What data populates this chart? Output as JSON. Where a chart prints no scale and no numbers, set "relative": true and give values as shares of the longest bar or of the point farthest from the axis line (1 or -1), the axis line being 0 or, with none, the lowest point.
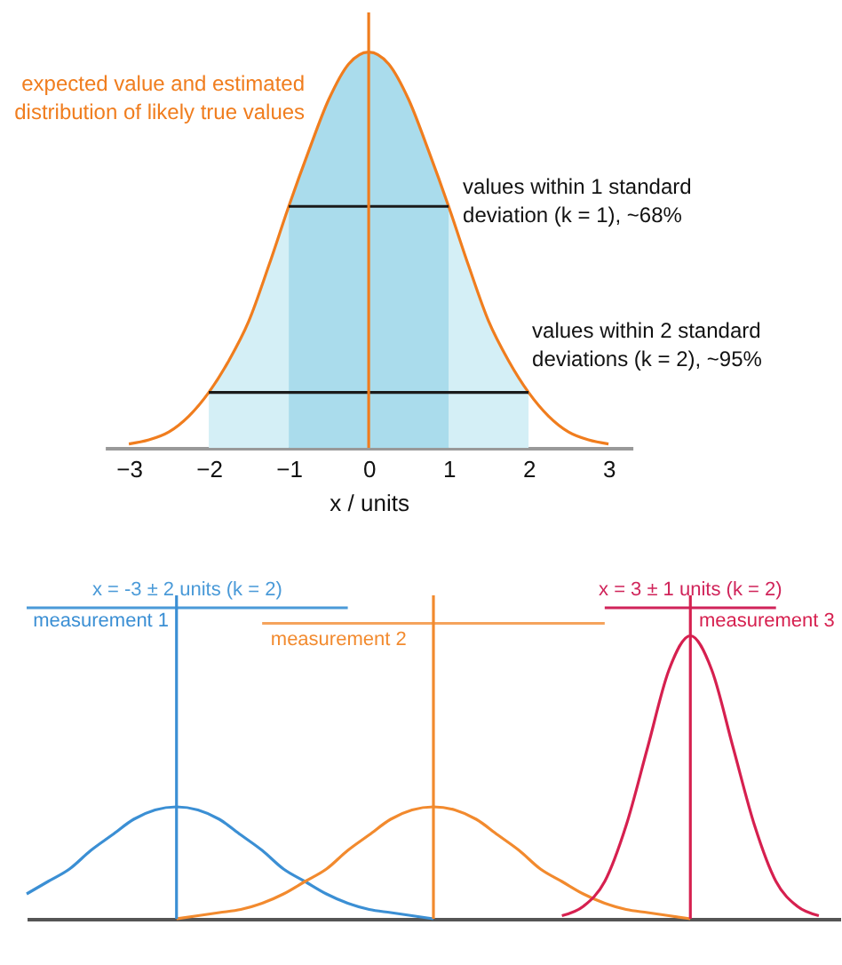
{
  "chart_data": [
    {
      "type": "line",
      "relative": true,
      "xlabel": "x / units",
      "xlim": [
        -3.3,
        3.3
      ],
      "xticks": [
        -3,
        -2,
        -1,
        0,
        1,
        2,
        3
      ],
      "ref_lines": [
        {
          "axis": "x",
          "value": 0,
          "color": "#f07d1e"
        }
      ],
      "annotations": [
        {
          "text": "values within 1 standard deviation (k = 1), ~68%",
          "x": 1,
          "y": 0.61
        },
        {
          "text": "values within 2 standard deviations (k = 2), ~95%",
          "x": 2,
          "y": 0.14
        }
      ],
      "series": [
        {
          "type": "area",
          "color": "#d4eff6",
          "x": [
            -2,
            -1.75,
            -1.5,
            -1.25,
            -1
          ],
          "values": [
            0.14,
            0.22,
            0.32,
            0.46,
            0.61
          ]
        },
        {
          "type": "area",
          "color": "#d4eff6",
          "x": [
            1,
            1.25,
            1.5,
            1.75,
            2
          ],
          "values": [
            0.61,
            0.46,
            0.32,
            0.22,
            0.14
          ]
        },
        {
          "type": "area",
          "color": "#aadcec",
          "x": [
            -1,
            -0.75,
            -0.5,
            -0.25,
            0,
            0.25,
            0.5,
            0.75,
            1
          ],
          "values": [
            0.61,
            0.75,
            0.88,
            0.97,
            1,
            0.97,
            0.88,
            0.75,
            0.61
          ]
        },
        {
          "type": "line",
          "name": "expected value and estimated distribution of likely true values",
          "color": "#f07d1e",
          "x": [
            -3,
            -2.75,
            -2.5,
            -2.25,
            -2,
            -1.75,
            -1.5,
            -1.25,
            -1,
            -0.75,
            -0.5,
            -0.25,
            0,
            0.25,
            0.5,
            0.75,
            1,
            1.25,
            1.5,
            1.75,
            2,
            2.25,
            2.5,
            2.75,
            3
          ],
          "values": [
            0.01,
            0.02,
            0.04,
            0.08,
            0.14,
            0.22,
            0.32,
            0.46,
            0.61,
            0.75,
            0.88,
            0.97,
            1,
            0.97,
            0.88,
            0.75,
            0.61,
            0.46,
            0.32,
            0.22,
            0.14,
            0.08,
            0.04,
            0.02,
            0.01
          ]
        },
        {
          "type": "line",
          "color": "#1a1a1a",
          "x": [
            -1,
            -0.5,
            0,
            0.5,
            1
          ],
          "values": [
            0.61,
            0.61,
            0.61,
            0.61,
            0.61
          ]
        },
        {
          "type": "line",
          "color": "#1a1a1a",
          "x": [
            -2,
            -1,
            0,
            1,
            2
          ],
          "values": [
            0.14,
            0.14,
            0.14,
            0.14,
            0.14
          ]
        }
      ]
    },
    {
      "type": "line",
      "relative": true,
      "categories": [
        null,
        null,
        null,
        null,
        null,
        null,
        null,
        null,
        null,
        null,
        null,
        null,
        null,
        null,
        null,
        null,
        null,
        null,
        null,
        null,
        null,
        null,
        null,
        null,
        null,
        null,
        null,
        null,
        null,
        null,
        null,
        null,
        null,
        null,
        null,
        null,
        null,
        null,
        null
      ],
      "series": [
        {
          "type": "line",
          "name": "measurement 1",
          "color": "#3b8fd4",
          "values": [
            0.08,
            0.12,
            0.16,
            0.22,
            0.27,
            0.32,
            0.35,
            0.36,
            0.35,
            0.32,
            0.27,
            0.22,
            0.16,
            0.12,
            0.08,
            0.05,
            0.03,
            0.02,
            0.01,
            0,
            null,
            null,
            null,
            null,
            null,
            null,
            null,
            null,
            null,
            null,
            null,
            null,
            null,
            null,
            null,
            null,
            null,
            null,
            null
          ]
        },
        {
          "type": "line",
          "name": "measurement 2",
          "color": "#f28a2e",
          "values": [
            null,
            null,
            null,
            null,
            null,
            null,
            null,
            0,
            0.01,
            0.02,
            0.03,
            0.05,
            0.08,
            0.12,
            0.16,
            0.22,
            0.27,
            0.32,
            0.35,
            0.36,
            0.35,
            0.32,
            0.27,
            0.22,
            0.16,
            0.12,
            0.08,
            0.05,
            0.03,
            0.02,
            0.01,
            0,
            null,
            null,
            null,
            null,
            null,
            null,
            null
          ]
        },
        {
          "type": "line",
          "name": "measurement 3",
          "color": "#d6204f",
          "values": [
            null,
            null,
            null,
            null,
            null,
            null,
            null,
            null,
            null,
            null,
            null,
            null,
            null,
            null,
            null,
            null,
            null,
            null,
            null,
            null,
            null,
            null,
            null,
            null,
            null,
            0.01,
            0.04,
            0.12,
            0.3,
            0.55,
            0.8,
            0.91,
            0.8,
            0.55,
            0.3,
            0.12,
            0.04,
            0.01,
            null
          ]
        },
        {
          "type": "line",
          "name": "x = -3 ± 2 units (k = 2)",
          "color": "#4a9ad8",
          "values": [
            1,
            1,
            1,
            1,
            1,
            1,
            1,
            1,
            1,
            1,
            1,
            1,
            1,
            1,
            1,
            1,
            null,
            null,
            null,
            null,
            null,
            null,
            null,
            null,
            null,
            null,
            null,
            null,
            null,
            null,
            null,
            null,
            null,
            null,
            null,
            null,
            null,
            null,
            null
          ]
        },
        {
          "type": "line",
          "color": "#f5a35c",
          "values": [
            null,
            null,
            null,
            null,
            null,
            null,
            null,
            null,
            null,
            null,
            null,
            0.95,
            0.95,
            0.95,
            0.95,
            0.95,
            0.95,
            0.95,
            0.95,
            0.95,
            0.95,
            0.95,
            0.95,
            0.95,
            0.95,
            0.95,
            0.95,
            0.95,
            null,
            null,
            null,
            null,
            null,
            null,
            null,
            null,
            null,
            null,
            null
          ]
        },
        {
          "type": "line",
          "name": "x = 3 ± 1 units (k = 2)",
          "color": "#d0245a",
          "values": [
            null,
            null,
            null,
            null,
            null,
            null,
            null,
            null,
            null,
            null,
            null,
            null,
            null,
            null,
            null,
            null,
            null,
            null,
            null,
            null,
            null,
            null,
            null,
            null,
            null,
            null,
            null,
            1,
            1,
            1,
            1,
            1,
            1,
            1,
            1,
            1,
            null,
            null,
            null
          ]
        }
      ]
    }
  ]
}
